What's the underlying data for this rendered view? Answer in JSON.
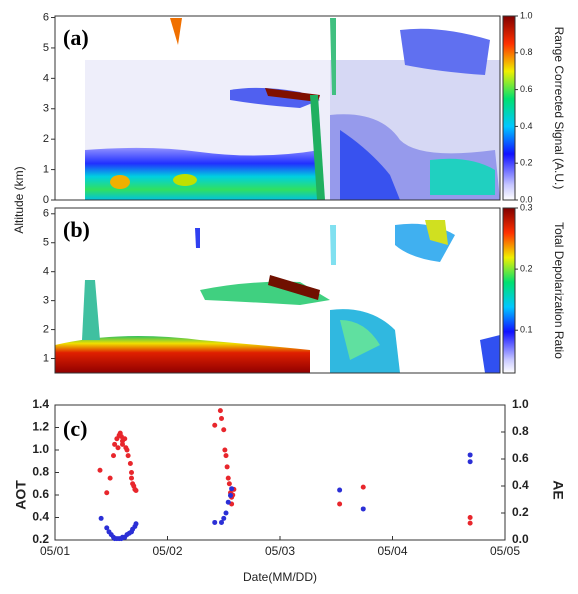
{
  "chart_data": [
    {
      "type": "heatmap",
      "label": "(a)",
      "ylabel": "Altitude (km)",
      "ylim": [
        0,
        6.05
      ],
      "yticks": [
        0,
        1,
        2,
        3,
        4,
        5,
        6
      ],
      "colorbar": {
        "label": "Range Corrected Signal (A.U.)",
        "lim": [
          0,
          1
        ],
        "ticks": [
          {
            "value": 0,
            "label": "0.0"
          },
          0.2,
          0.4,
          0.6,
          0.8,
          {
            "value": 1,
            "label": "1.0"
          }
        ]
      }
    },
    {
      "type": "heatmap",
      "label": "(b)",
      "ylim": [
        0.5,
        6.2
      ],
      "yticks": [
        1,
        2,
        3,
        4,
        5,
        6
      ],
      "colorbar": {
        "label": "Total Depolarization Ratio",
        "lim": [
          0.03,
          0.3
        ],
        "ticks": [
          0.1,
          0.2,
          0.3
        ]
      }
    },
    {
      "type": "scatter",
      "label": "(c)",
      "xlabel": "Date(MM/DD)",
      "ylabel": "AOT",
      "y2label": "AE",
      "xlim": [
        1,
        5
      ],
      "xticks": [
        {
          "value": 1,
          "label": "05/01"
        },
        {
          "value": 2,
          "label": "05/02"
        },
        {
          "value": 3,
          "label": "05/03"
        },
        {
          "value": 4,
          "label": "05/04"
        },
        {
          "value": 5,
          "label": "05/05"
        }
      ],
      "ylim": [
        0.2,
        1.4
      ],
      "yticks": [
        0.2,
        0.4,
        0.6,
        0.8,
        {
          "value": 1,
          "label": "1.0"
        },
        1.2,
        1.4
      ],
      "y2lim": [
        0,
        1
      ],
      "y2ticks": [
        {
          "value": 0,
          "label": "0.0"
        },
        0.2,
        0.4,
        0.6,
        0.8,
        {
          "value": 1,
          "label": "1.0"
        }
      ],
      "series": [
        {
          "color": "#e8262c",
          "axis": "y",
          "x": [
            1.4,
            1.46,
            1.49,
            1.52,
            1.53,
            1.55,
            1.56,
            1.57,
            1.58,
            1.59,
            1.6,
            1.6,
            1.62,
            1.63,
            1.64,
            1.65,
            1.67,
            1.68,
            1.68,
            1.69,
            1.7,
            1.71,
            1.72,
            2.42,
            2.47,
            2.48,
            2.5,
            2.51,
            2.52,
            2.53,
            2.54,
            2.55,
            2.56,
            2.57,
            2.57,
            2.58,
            2.59,
            3.53,
            3.74,
            4.69,
            4.69
          ],
          "values": [
            0.82,
            0.62,
            0.75,
            0.95,
            1.05,
            1.1,
            1.02,
            1.13,
            1.15,
            1.12,
            1.08,
            1.05,
            1.1,
            1.02,
            1.0,
            0.95,
            0.88,
            0.8,
            0.75,
            0.7,
            0.68,
            0.65,
            0.64,
            1.22,
            1.35,
            1.28,
            1.18,
            1.0,
            0.95,
            0.85,
            0.75,
            0.7,
            0.62,
            0.58,
            0.52,
            0.6,
            0.65,
            0.52,
            0.67,
            0.4,
            0.35
          ]
        },
        {
          "color": "#2b2fd6",
          "axis": "y2",
          "x": [
            1.41,
            1.46,
            1.48,
            1.5,
            1.52,
            1.53,
            1.55,
            1.57,
            1.59,
            1.6,
            1.62,
            1.64,
            1.66,
            1.68,
            1.69,
            1.71,
            1.72,
            2.42,
            2.48,
            2.5,
            2.52,
            2.54,
            2.56,
            2.57,
            3.53,
            3.74,
            4.69,
            4.69
          ],
          "values": [
            0.16,
            0.09,
            0.06,
            0.04,
            0.02,
            0.01,
            0.01,
            0.01,
            0.01,
            0.02,
            0.02,
            0.04,
            0.05,
            0.06,
            0.08,
            0.1,
            0.12,
            0.13,
            0.13,
            0.16,
            0.2,
            0.28,
            0.33,
            0.38,
            0.37,
            0.23,
            0.63,
            0.58
          ]
        }
      ]
    }
  ]
}
